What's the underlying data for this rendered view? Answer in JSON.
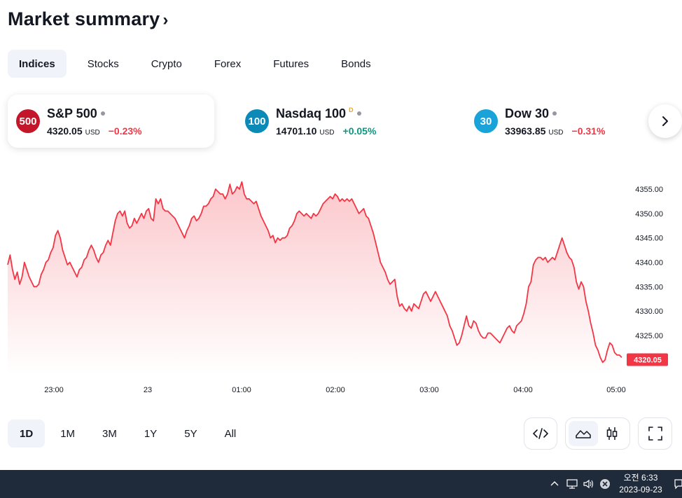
{
  "header": {
    "title": "Market summary",
    "chevron": "›"
  },
  "tabs": [
    {
      "label": "Indices",
      "active": true
    },
    {
      "label": "Stocks",
      "active": false
    },
    {
      "label": "Crypto",
      "active": false
    },
    {
      "label": "Forex",
      "active": false
    },
    {
      "label": "Futures",
      "active": false
    },
    {
      "label": "Bonds",
      "active": false
    }
  ],
  "symbols": [
    {
      "badge": "500",
      "badge_color": "#c4162a",
      "name": "S&P 500",
      "price": "4320.05",
      "currency": "USD",
      "change": "−0.23%",
      "direction": "down",
      "active": true
    },
    {
      "badge": "100",
      "badge_color": "#0b8ab8",
      "name": "Nasdaq 100",
      "marker": "D",
      "price": "14701.10",
      "currency": "USD",
      "change": "+0.05%",
      "direction": "up",
      "active": false
    },
    {
      "badge": "30",
      "badge_color": "#1aa3d8",
      "name": "Dow 30",
      "price": "33963.85",
      "currency": "USD",
      "change": "−0.31%",
      "direction": "down",
      "active": false
    }
  ],
  "next_icon": "chevron-right-icon",
  "chart_data": {
    "type": "area",
    "line_color": "#f23645",
    "last_value_label": "4320.05",
    "x_ticks": [
      "23:00",
      "23",
      "01:00",
      "02:00",
      "03:00",
      "04:00",
      "05:00"
    ],
    "y_ticks": [
      "4355.00",
      "4350.00",
      "4345.00",
      "4340.00",
      "4335.00",
      "4330.00",
      "4325.00"
    ],
    "ylim": [
      4318,
      4357
    ],
    "series": [
      {
        "values": [
          4339.5,
          4341.5,
          4338.5,
          4336.5,
          4338,
          4335.5,
          4337,
          4340,
          4338.5,
          4337,
          4336,
          4335,
          4335,
          4335.5,
          4337.5,
          4338.5,
          4340,
          4340.5,
          4342,
          4343,
          4345.5,
          4346.5,
          4345,
          4342.5,
          4341,
          4339.5,
          4340,
          4339,
          4338,
          4337,
          4338.5,
          4339,
          4340.5,
          4341,
          4342.5,
          4343.5,
          4342.5,
          4341,
          4340,
          4341.5,
          4342,
          4343.5,
          4344.5,
          4343.5,
          4346,
          4348.5,
          4350,
          4350.5,
          4349.5,
          4350.5,
          4348,
          4347,
          4347.5,
          4349,
          4348,
          4349,
          4350,
          4349,
          4350.5,
          4351,
          4349,
          4348.5,
          4353,
          4352,
          4353,
          4351,
          4350.5,
          4350.5,
          4350,
          4349.5,
          4349,
          4348,
          4347,
          4346,
          4345,
          4346.5,
          4347.5,
          4349,
          4349.5,
          4348.5,
          4349,
          4350,
          4351.5,
          4351.5,
          4352,
          4353,
          4353.5,
          4355,
          4354.5,
          4354,
          4354,
          4353,
          4354,
          4356,
          4354,
          4354.5,
          4355.5,
          4355,
          4356.5,
          4354,
          4353,
          4353,
          4352.5,
          4352,
          4352.5,
          4351,
          4349.5,
          4348.5,
          4347.5,
          4346.5,
          4345,
          4345.5,
          4344,
          4345,
          4344.5,
          4345,
          4345,
          4345.5,
          4347,
          4347.5,
          4348.5,
          4350,
          4350.5,
          4350,
          4349.5,
          4350,
          4349.5,
          4349,
          4350,
          4349.5,
          4350,
          4351,
          4352,
          4352.5,
          4353,
          4353.5,
          4353,
          4354,
          4353.5,
          4352.5,
          4353,
          4352.5,
          4353,
          4352.5,
          4353,
          4352,
          4351,
          4350,
          4350.5,
          4351,
          4349.5,
          4349,
          4347.5,
          4346,
          4344,
          4342,
          4340,
          4339,
          4338,
          4336.5,
          4335.5,
          4336,
          4336.5,
          4333,
          4331,
          4331.5,
          4330.5,
          4330,
          4331,
          4330,
          4331.5,
          4331,
          4330.5,
          4332,
          4333.5,
          4334,
          4333,
          4332,
          4333,
          4334,
          4333,
          4332,
          4331,
          4330,
          4329,
          4327,
          4326,
          4324.5,
          4323,
          4323.5,
          4325,
          4327,
          4329,
          4327,
          4326.5,
          4328,
          4327.5,
          4326,
          4325,
          4324.5,
          4324.5,
          4325.5,
          4325.5,
          4325,
          4324.5,
          4324,
          4323.5,
          4324.5,
          4325.5,
          4326.5,
          4327,
          4326,
          4325.5,
          4327,
          4327.5,
          4328,
          4329.5,
          4331.5,
          4335,
          4336,
          4339.5,
          4340.5,
          4341,
          4341,
          4340.5,
          4341,
          4340,
          4340.5,
          4341,
          4340.5,
          4342,
          4343.5,
          4345,
          4343.5,
          4342,
          4341,
          4340.5,
          4339,
          4336,
          4334.5,
          4336,
          4335,
          4332,
          4330,
          4327.5,
          4325.5,
          4323,
          4322,
          4320.5,
          4319.5,
          4320,
          4322,
          4323.5,
          4323,
          4321.5,
          4321,
          4321,
          4320.5
        ]
      }
    ]
  },
  "ranges": [
    {
      "label": "1D",
      "active": true
    },
    {
      "label": "1M",
      "active": false
    },
    {
      "label": "3M",
      "active": false
    },
    {
      "label": "1Y",
      "active": false
    },
    {
      "label": "5Y",
      "active": false
    },
    {
      "label": "All",
      "active": false
    }
  ],
  "tools": {
    "embed_icon": "code-icon",
    "area_icon": "area-chart-icon",
    "candles_icon": "candlestick-icon",
    "fullscreen_icon": "fullscreen-icon"
  },
  "taskbar": {
    "time": "오전 6:33",
    "date": "2023-09-23",
    "tray_icons": [
      "chevron-up-icon",
      "network-icon",
      "volume-icon",
      "close-circle-icon",
      "notification-icon"
    ]
  }
}
